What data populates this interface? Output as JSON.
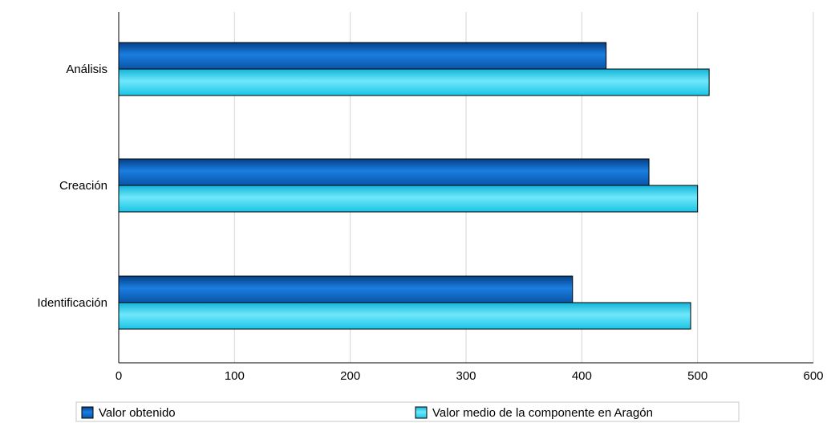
{
  "chart_data": {
    "type": "bar",
    "orientation": "horizontal",
    "categories": [
      "Análisis",
      "Creación",
      "Identificación"
    ],
    "series": [
      {
        "name": "Valor obtenido",
        "values": [
          421,
          458,
          392
        ],
        "color": "#0a5fb8"
      },
      {
        "name": "Valor medio de la componente en Aragón",
        "values": [
          510,
          500,
          494
        ],
        "color": "#33d3f0"
      }
    ],
    "xlim": [
      0,
      600
    ],
    "xticks": [
      "0",
      "100",
      "200",
      "300",
      "400",
      "500",
      "600"
    ],
    "grid": true,
    "legend_position": "bottom"
  }
}
